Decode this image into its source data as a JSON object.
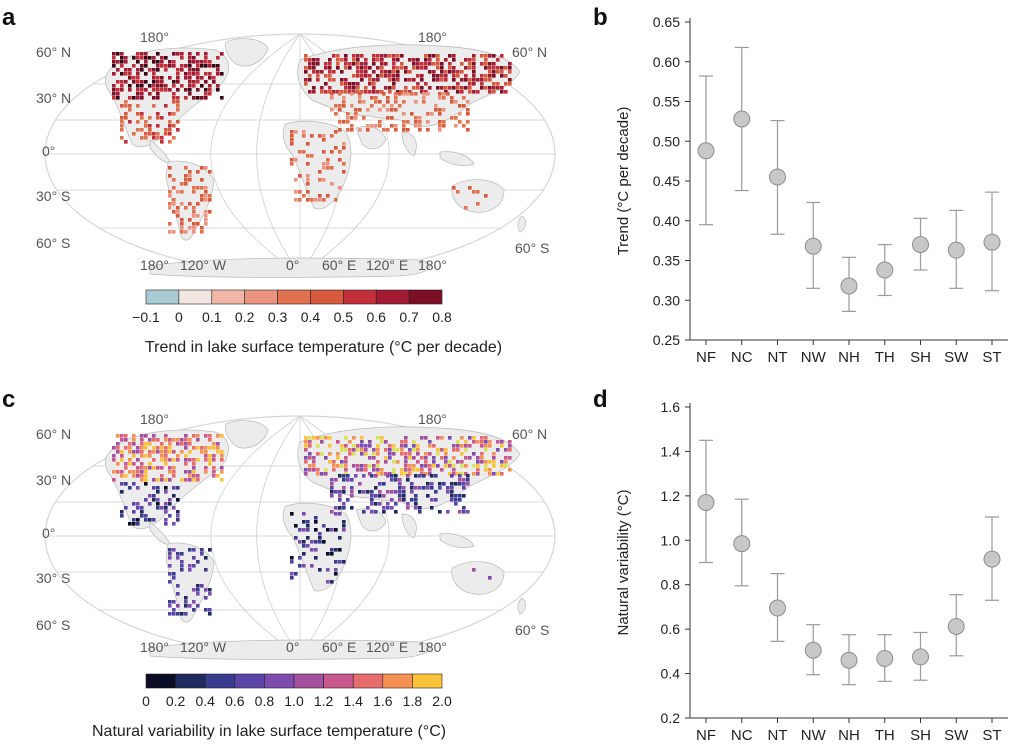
{
  "panels": {
    "a": {
      "letter": "a"
    },
    "b": {
      "letter": "b"
    },
    "c": {
      "letter": "c"
    },
    "d": {
      "letter": "d"
    }
  },
  "map_labels": {
    "lat_left": [
      "60° N",
      "30° N",
      "0°",
      "30° S",
      "60° S"
    ],
    "lat_right": [
      "60° N",
      "60° S"
    ],
    "top_lon": [
      "180°",
      "180°"
    ],
    "bottom_lon": [
      "180°",
      "120° W",
      "0°",
      "60° E",
      "120° E",
      "180°"
    ]
  },
  "colorbars": {
    "trend": {
      "title": "Trend in lake surface temperature (°C per decade)",
      "ticks": [
        "−0.1",
        "0",
        "0.1",
        "0.2",
        "0.3",
        "0.4",
        "0.5",
        "0.6",
        "0.7",
        "0.8"
      ],
      "colors": [
        "#a9ccd4",
        "#f2e6e1",
        "#f0b7a6",
        "#ea9480",
        "#e0724f",
        "#d65a3c",
        "#c22f3a",
        "#a31c34",
        "#7c0f26",
        "#3d0513"
      ]
    },
    "variability": {
      "title": "Natural variability in lake surface temperature (°C)",
      "ticks": [
        "0",
        "0.2",
        "0.4",
        "0.6",
        "0.8",
        "1.0",
        "1.2",
        "1.4",
        "1.6",
        "1.8",
        "2.0"
      ],
      "colors": [
        "#0b0c26",
        "#1f2a5f",
        "#3a3c8f",
        "#5b45a8",
        "#7e4cae",
        "#a3519f",
        "#c8588d",
        "#e66c6e",
        "#f59154",
        "#fbc23a",
        "#d8e25b"
      ]
    }
  },
  "chart_data": [
    {
      "type": "scatter",
      "panel": "b",
      "categories": [
        "NF",
        "NC",
        "NT",
        "NW",
        "NH",
        "TH",
        "SH",
        "SW",
        "ST"
      ],
      "values": [
        0.488,
        0.528,
        0.455,
        0.368,
        0.318,
        0.338,
        0.37,
        0.363,
        0.373
      ],
      "err_low": [
        0.395,
        0.438,
        0.383,
        0.315,
        0.286,
        0.306,
        0.338,
        0.315,
        0.312
      ],
      "err_high": [
        0.582,
        0.618,
        0.526,
        0.423,
        0.354,
        0.37,
        0.403,
        0.413,
        0.436
      ],
      "ylabel": "Trend (°C per decade)",
      "ylim": [
        0.25,
        0.65
      ],
      "yticks": [
        "0.25",
        "0.30",
        "0.35",
        "0.40",
        "0.45",
        "0.50",
        "0.55",
        "0.60",
        "0.65"
      ]
    },
    {
      "type": "scatter",
      "panel": "d",
      "categories": [
        "NF",
        "NC",
        "NT",
        "NW",
        "NH",
        "TH",
        "SH",
        "SW",
        "ST"
      ],
      "values": [
        1.17,
        0.985,
        0.695,
        0.505,
        0.46,
        0.468,
        0.475,
        0.612,
        0.915
      ],
      "err_low": [
        0.9,
        0.795,
        0.545,
        0.395,
        0.35,
        0.365,
        0.37,
        0.48,
        0.73
      ],
      "err_high": [
        1.45,
        1.185,
        0.85,
        0.62,
        0.575,
        0.575,
        0.585,
        0.755,
        1.105
      ],
      "ylabel": "Natural variability (°C)",
      "ylim": [
        0.2,
        1.6
      ],
      "yticks": [
        "0.2",
        "0.4",
        "0.6",
        "0.8",
        "1.0",
        "1.2",
        "1.4",
        "1.6"
      ]
    }
  ]
}
